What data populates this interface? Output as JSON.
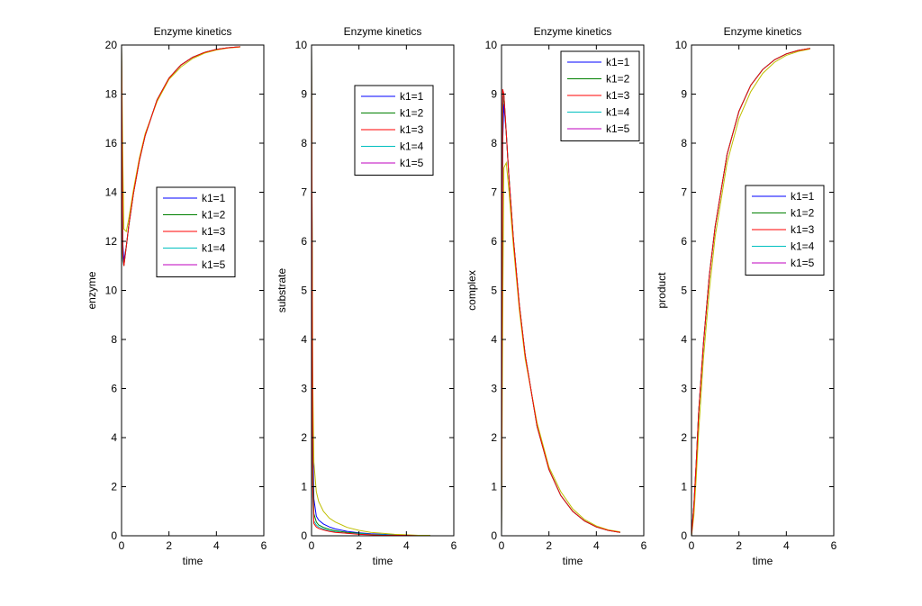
{
  "chart_data": [
    {
      "type": "line",
      "title": "Enzyme kinetics",
      "xlabel": "time",
      "ylabel": "enzyme",
      "xlim": [
        0,
        6
      ],
      "ylim": [
        0,
        20
      ],
      "xticks": [
        0,
        2,
        4,
        6
      ],
      "yticks": [
        0,
        2,
        4,
        6,
        8,
        10,
        12,
        14,
        16,
        18,
        20
      ],
      "legend_placement": "center-right",
      "x": [
        0,
        0.05,
        0.1,
        0.2,
        0.3,
        0.5,
        0.75,
        1,
        1.5,
        2,
        2.5,
        3,
        3.5,
        4,
        4.5,
        5
      ],
      "series": [
        {
          "name": "k1=1",
          "color": "#0000ff",
          "values": [
            20,
            12,
            11.2,
            11.8,
            12.6,
            13.95,
            15.3,
            16.32,
            17.77,
            18.65,
            19.18,
            19.5,
            19.7,
            19.82,
            19.89,
            19.93
          ]
        },
        {
          "name": "k1=2",
          "color": "#008000",
          "values": [
            20,
            11.3,
            11,
            11.8,
            12.6,
            13.95,
            15.3,
            16.32,
            17.77,
            18.65,
            19.18,
            19.5,
            19.7,
            19.82,
            19.89,
            19.93
          ]
        },
        {
          "name": "k1=4",
          "color": "#00bfbf",
          "values": [
            20,
            11.2,
            11,
            11.8,
            12.6,
            13.95,
            15.3,
            16.32,
            17.77,
            18.65,
            19.18,
            19.5,
            19.7,
            19.82,
            19.89,
            19.93
          ]
        },
        {
          "name": "",
          "color": "#bfbf00",
          "values": [
            20,
            15.6,
            12.5,
            12.4,
            12.9,
            14.1,
            15.4,
            16.4,
            17.7,
            18.6,
            19.1,
            19.45,
            19.67,
            19.8,
            19.88,
            19.92
          ]
        },
        {
          "name": "k1=3",
          "color": "#ff0000",
          "values": [
            20,
            11.5,
            11,
            11.8,
            12.6,
            13.95,
            15.3,
            16.32,
            17.77,
            18.65,
            19.18,
            19.5,
            19.7,
            19.82,
            19.89,
            19.93
          ]
        },
        {
          "name": "k1=5",
          "color": "#bf00bf",
          "values": [
            0,
            0,
            0,
            0,
            0,
            0,
            0,
            0,
            0,
            0,
            0,
            0,
            0,
            0,
            0,
            0
          ]
        }
      ]
    },
    {
      "type": "line",
      "title": "Enzyme kinetics",
      "xlabel": "time",
      "ylabel": "substrate",
      "xlim": [
        0,
        6
      ],
      "ylim": [
        0,
        10
      ],
      "xticks": [
        0,
        2,
        4,
        6
      ],
      "yticks": [
        0,
        1,
        2,
        3,
        4,
        5,
        6,
        7,
        8,
        9,
        10
      ],
      "legend_placement": "top-right",
      "x": [
        0,
        0.05,
        0.1,
        0.2,
        0.3,
        0.5,
        0.75,
        1,
        1.5,
        2,
        2.5,
        3,
        3.5,
        4,
        4.5,
        5
      ],
      "series": [
        {
          "name": "k1=1",
          "color": "#0000ff",
          "values": [
            10,
            2.2,
            0.75,
            0.4,
            0.32,
            0.24,
            0.18,
            0.14,
            0.09,
            0.06,
            0.04,
            0.03,
            0.02,
            0.01,
            0.01,
            0.01
          ]
        },
        {
          "name": "k1=2",
          "color": "#008000",
          "values": [
            10,
            1.5,
            0.45,
            0.28,
            0.22,
            0.17,
            0.13,
            0.1,
            0.07,
            0.05,
            0.03,
            0.02,
            0.01,
            0.01,
            0.01,
            0.01
          ]
        },
        {
          "name": "k1=4",
          "color": "#00bfbf",
          "values": [
            10,
            0.8,
            0.3,
            0.22,
            0.18,
            0.14,
            0.1,
            0.08,
            0.05,
            0.04,
            0.03,
            0.02,
            0.01,
            0.01,
            0.01,
            0
          ]
        },
        {
          "name": "",
          "color": "#bfbf00",
          "values": [
            10,
            3.3,
            1.5,
            0.9,
            0.7,
            0.5,
            0.36,
            0.28,
            0.17,
            0.11,
            0.07,
            0.05,
            0.03,
            0.02,
            0.01,
            0.01
          ]
        },
        {
          "name": "k1=3",
          "color": "#ff0000",
          "values": [
            10,
            1.0,
            0.25,
            0.18,
            0.15,
            0.12,
            0.09,
            0.07,
            0.05,
            0.03,
            0.02,
            0.01,
            0.01,
            0.01,
            0,
            0
          ]
        },
        {
          "name": "k1=5",
          "color": "#bf00bf",
          "values": [
            0,
            0,
            0,
            0,
            0,
            0,
            0,
            0,
            0,
            0,
            0,
            0,
            0,
            0,
            0,
            0
          ]
        }
      ]
    },
    {
      "type": "line",
      "title": "Enzyme kinetics",
      "xlabel": "time",
      "ylabel": "complex",
      "xlim": [
        0,
        6
      ],
      "ylim": [
        0,
        10
      ],
      "xticks": [
        0,
        2,
        4,
        6
      ],
      "yticks": [
        0,
        1,
        2,
        3,
        4,
        5,
        6,
        7,
        8,
        9,
        10
      ],
      "legend_placement": "top-right",
      "x": [
        0,
        0.05,
        0.1,
        0.2,
        0.3,
        0.5,
        0.75,
        1,
        1.5,
        2,
        2.5,
        3,
        3.5,
        4,
        4.5,
        5
      ],
      "series": [
        {
          "name": "k1=1",
          "color": "#0000ff",
          "values": [
            0,
            8,
            8.8,
            8.2,
            7.4,
            6.05,
            4.7,
            3.68,
            2.23,
            1.35,
            0.82,
            0.5,
            0.3,
            0.18,
            0.11,
            0.07
          ]
        },
        {
          "name": "k1=2",
          "color": "#008000",
          "values": [
            0,
            8.7,
            9.0,
            8.2,
            7.4,
            6.05,
            4.7,
            3.68,
            2.23,
            1.35,
            0.82,
            0.5,
            0.3,
            0.18,
            0.11,
            0.07
          ]
        },
        {
          "name": "k1=4",
          "color": "#00bfbf",
          "values": [
            0,
            8.8,
            9.0,
            8.2,
            7.4,
            6.05,
            4.7,
            3.68,
            2.23,
            1.35,
            0.82,
            0.5,
            0.3,
            0.18,
            0.11,
            0.07
          ]
        },
        {
          "name": "",
          "color": "#bfbf00",
          "values": [
            0,
            4.4,
            7.5,
            7.6,
            7.1,
            5.9,
            4.6,
            3.6,
            2.3,
            1.4,
            0.9,
            0.55,
            0.33,
            0.2,
            0.12,
            0.08
          ]
        },
        {
          "name": "k1=3",
          "color": "#ff0000",
          "values": [
            0,
            9.1,
            9.0,
            8.2,
            7.4,
            6.05,
            4.7,
            3.68,
            2.23,
            1.35,
            0.82,
            0.5,
            0.3,
            0.18,
            0.11,
            0.07
          ]
        },
        {
          "name": "k1=5",
          "color": "#bf00bf",
          "values": [
            0,
            0,
            0,
            0,
            0,
            0,
            0,
            0,
            0,
            0,
            0,
            0,
            0,
            0,
            0,
            0
          ]
        }
      ]
    },
    {
      "type": "line",
      "title": "Enzyme kinetics",
      "xlabel": "time",
      "ylabel": "product",
      "xlim": [
        0,
        6
      ],
      "ylim": [
        0,
        10
      ],
      "xticks": [
        0,
        2,
        4,
        6
      ],
      "yticks": [
        0,
        1,
        2,
        3,
        4,
        5,
        6,
        7,
        8,
        9,
        10
      ],
      "legend_placement": "center-right",
      "x": [
        0,
        0.05,
        0.1,
        0.2,
        0.3,
        0.5,
        0.75,
        1,
        1.5,
        2,
        2.5,
        3,
        3.5,
        4,
        4.5,
        5
      ],
      "series": [
        {
          "name": "k1=1",
          "color": "#0000ff",
          "values": [
            0,
            0.3,
            0.6,
            1.5,
            2.5,
            3.9,
            5.3,
            6.3,
            7.77,
            8.65,
            9.18,
            9.5,
            9.7,
            9.82,
            9.89,
            9.93
          ]
        },
        {
          "name": "k1=2",
          "color": "#008000",
          "values": [
            0,
            0.3,
            0.6,
            1.5,
            2.5,
            3.9,
            5.3,
            6.3,
            7.77,
            8.65,
            9.18,
            9.5,
            9.7,
            9.82,
            9.89,
            9.93
          ]
        },
        {
          "name": "k1=4",
          "color": "#00bfbf",
          "values": [
            0,
            0.3,
            0.6,
            1.5,
            2.5,
            3.9,
            5.3,
            6.3,
            7.77,
            8.65,
            9.18,
            9.5,
            9.7,
            9.82,
            9.89,
            9.93
          ]
        },
        {
          "name": "",
          "color": "#bfbf00",
          "values": [
            0,
            0.2,
            0.4,
            1.2,
            2.1,
            3.6,
            5.0,
            6.1,
            7.6,
            8.5,
            9.05,
            9.42,
            9.65,
            9.79,
            9.87,
            9.92
          ]
        },
        {
          "name": "k1=3",
          "color": "#ff0000",
          "values": [
            0,
            0.3,
            0.6,
            1.5,
            2.5,
            3.9,
            5.3,
            6.3,
            7.77,
            8.65,
            9.18,
            9.5,
            9.7,
            9.82,
            9.89,
            9.93
          ]
        },
        {
          "name": "k1=5",
          "color": "#bf00bf",
          "values": [
            0,
            0,
            0,
            0,
            0,
            0,
            0,
            0,
            0,
            0,
            0,
            0,
            0,
            0,
            0,
            0
          ]
        }
      ]
    }
  ]
}
